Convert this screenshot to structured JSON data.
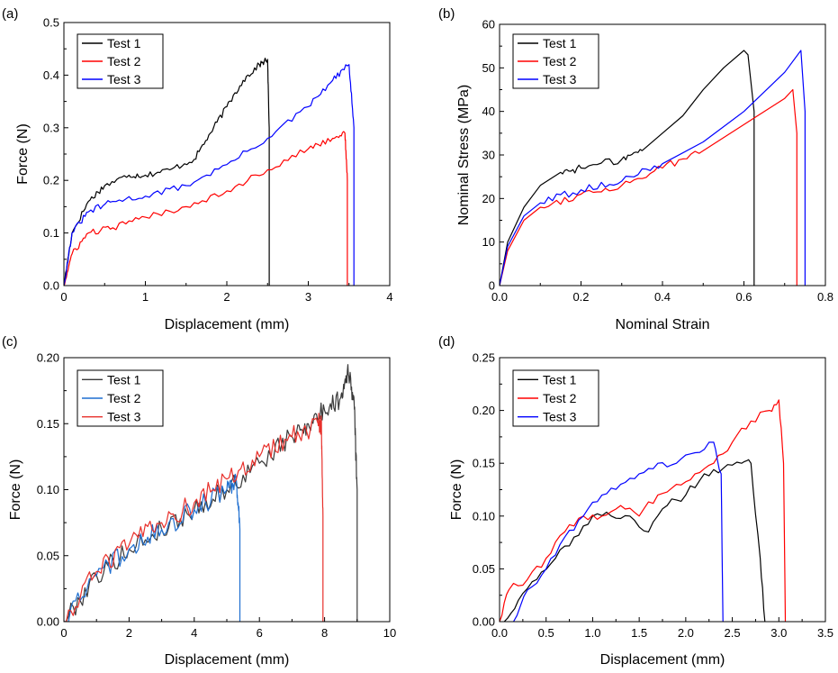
{
  "figure": {
    "panel_count": 4
  },
  "chart_data": [
    {
      "panel_label": "(a)",
      "type": "line",
      "title": "",
      "xlabel": "Displacement (mm)",
      "ylabel": "Force (N)",
      "xlim": [
        0,
        4
      ],
      "ylim": [
        0,
        0.5
      ],
      "xticks": [
        "0",
        "1",
        "2",
        "3",
        "4"
      ],
      "yticks": [
        "0.0",
        "0.1",
        "0.2",
        "0.3",
        "0.4",
        "0.5"
      ],
      "grid": false,
      "legend": "top-left",
      "series": [
        {
          "name": "Test 1",
          "color": "#000000",
          "x": [
            0,
            0.1,
            0.3,
            0.5,
            0.8,
            1.0,
            1.3,
            1.6,
            1.8,
            2.0,
            2.2,
            2.4,
            2.5,
            2.52,
            2.52
          ],
          "y": [
            0.0,
            0.1,
            0.16,
            0.19,
            0.21,
            0.21,
            0.22,
            0.24,
            0.29,
            0.34,
            0.39,
            0.42,
            0.43,
            0.3,
            0.0
          ]
        },
        {
          "name": "Test 2",
          "color": "#ff0000",
          "x": [
            0,
            0.1,
            0.3,
            0.6,
            1.0,
            1.5,
            2.0,
            2.5,
            3.0,
            3.3,
            3.45,
            3.48,
            3.48
          ],
          "y": [
            0.0,
            0.06,
            0.1,
            0.11,
            0.13,
            0.15,
            0.18,
            0.22,
            0.26,
            0.28,
            0.29,
            0.2,
            0.0
          ]
        },
        {
          "name": "Test 3",
          "color": "#0000ff",
          "x": [
            0,
            0.1,
            0.3,
            0.6,
            1.0,
            1.5,
            2.0,
            2.5,
            3.0,
            3.3,
            3.5,
            3.56,
            3.56
          ],
          "y": [
            0.0,
            0.1,
            0.14,
            0.16,
            0.17,
            0.19,
            0.23,
            0.28,
            0.34,
            0.39,
            0.42,
            0.3,
            0.0
          ]
        }
      ]
    },
    {
      "panel_label": "(b)",
      "type": "line",
      "title": "",
      "xlabel": "Nominal Strain",
      "ylabel": "Nominal Stress (MPa)",
      "xlim": [
        0,
        0.8
      ],
      "ylim": [
        0,
        60
      ],
      "xticks": [
        "0.0",
        "0.2",
        "0.4",
        "0.6",
        "0.8"
      ],
      "yticks": [
        "0",
        "10",
        "20",
        "30",
        "40",
        "50",
        "60"
      ],
      "grid": false,
      "legend": "top-left",
      "series": [
        {
          "name": "Test 1",
          "color": "#000000",
          "x": [
            0,
            0.02,
            0.06,
            0.1,
            0.15,
            0.2,
            0.3,
            0.35,
            0.4,
            0.45,
            0.5,
            0.55,
            0.6,
            0.61,
            0.625,
            0.625
          ],
          "y": [
            0,
            10,
            18,
            23,
            26,
            27,
            29,
            31,
            35,
            39,
            45,
            50,
            54,
            53,
            40,
            0
          ]
        },
        {
          "name": "Test 2",
          "color": "#ff0000",
          "x": [
            0,
            0.02,
            0.06,
            0.1,
            0.2,
            0.3,
            0.4,
            0.5,
            0.6,
            0.7,
            0.72,
            0.73,
            0.73
          ],
          "y": [
            0,
            8,
            15,
            18,
            21,
            23,
            27,
            31,
            37,
            43,
            45,
            35,
            0
          ]
        },
        {
          "name": "Test 3",
          "color": "#0000ff",
          "x": [
            0,
            0.02,
            0.06,
            0.1,
            0.2,
            0.3,
            0.4,
            0.5,
            0.6,
            0.7,
            0.74,
            0.75,
            0.75
          ],
          "y": [
            0,
            9,
            16,
            19,
            22,
            24,
            28,
            33,
            40,
            49,
            54,
            40,
            0
          ]
        }
      ]
    },
    {
      "panel_label": "(c)",
      "type": "line",
      "title": "",
      "xlabel": "Displacement (mm)",
      "ylabel": "Force (N)",
      "xlim": [
        0,
        10
      ],
      "ylim": [
        0,
        0.2
      ],
      "xticks": [
        "0",
        "2",
        "4",
        "6",
        "8",
        "10"
      ],
      "yticks": [
        "0.00",
        "0.05",
        "0.10",
        "0.15",
        "0.20"
      ],
      "grid": false,
      "legend": "top-left",
      "series": [
        {
          "name": "Test 1",
          "color": "#3a3a3a",
          "x": [
            0,
            1,
            2,
            3,
            4,
            5,
            6,
            7,
            7.5,
            8,
            8.5,
            8.7,
            8.9,
            9.0,
            9.0
          ],
          "y": [
            0.0,
            0.035,
            0.055,
            0.07,
            0.085,
            0.1,
            0.12,
            0.14,
            0.15,
            0.16,
            0.17,
            0.19,
            0.17,
            0.1,
            0.0
          ]
        },
        {
          "name": "Test 2",
          "color": "#1f6fd0",
          "x": [
            0,
            1,
            2,
            3,
            4,
            5,
            5.3,
            5.4,
            5.4
          ],
          "y": [
            0.0,
            0.035,
            0.055,
            0.07,
            0.085,
            0.1,
            0.105,
            0.07,
            0.0
          ]
        },
        {
          "name": "Test 3",
          "color": "#e8302b",
          "x": [
            0,
            1,
            2,
            3,
            4,
            5,
            6,
            7,
            7.8,
            7.9,
            7.95,
            7.95
          ],
          "y": [
            0.0,
            0.038,
            0.058,
            0.075,
            0.09,
            0.108,
            0.125,
            0.14,
            0.15,
            0.15,
            0.08,
            0.0
          ]
        }
      ]
    },
    {
      "panel_label": "(d)",
      "type": "line",
      "title": "",
      "xlabel": "Displacement (mm)",
      "ylabel": "Force (N)",
      "xlim": [
        0,
        3.5
      ],
      "ylim": [
        0,
        0.25
      ],
      "xticks": [
        "0.0",
        "0.5",
        "1.0",
        "1.5",
        "2.0",
        "2.5",
        "3.0",
        "3.5"
      ],
      "yticks": [
        "0.00",
        "0.05",
        "0.10",
        "0.15",
        "0.20",
        "0.25"
      ],
      "grid": false,
      "legend": "top-left",
      "series": [
        {
          "name": "Test 1",
          "color": "#000000",
          "x": [
            0.05,
            0.2,
            0.4,
            0.6,
            0.8,
            1.0,
            1.2,
            1.4,
            1.6,
            1.8,
            2.0,
            2.2,
            2.4,
            2.6,
            2.7,
            2.8,
            2.85
          ],
          "y": [
            0.0,
            0.02,
            0.04,
            0.06,
            0.08,
            0.1,
            0.1,
            0.1,
            0.085,
            0.11,
            0.12,
            0.14,
            0.145,
            0.15,
            0.15,
            0.06,
            0.0
          ]
        },
        {
          "name": "Test 2",
          "color": "#ff0000",
          "x": [
            0.0,
            0.1,
            0.3,
            0.5,
            0.7,
            0.9,
            1.1,
            1.3,
            1.5,
            1.7,
            1.9,
            2.1,
            2.3,
            2.5,
            2.7,
            2.9,
            3.0,
            3.05,
            3.07
          ],
          "y": [
            0.0,
            0.03,
            0.04,
            0.06,
            0.085,
            0.1,
            0.1,
            0.11,
            0.1,
            0.12,
            0.13,
            0.14,
            0.15,
            0.17,
            0.19,
            0.2,
            0.21,
            0.15,
            0.0
          ]
        },
        {
          "name": "Test 3",
          "color": "#0000ff",
          "x": [
            0.15,
            0.3,
            0.5,
            0.7,
            0.9,
            1.1,
            1.3,
            1.5,
            1.7,
            1.9,
            2.1,
            2.3,
            2.38,
            2.4
          ],
          "y": [
            0.0,
            0.03,
            0.05,
            0.08,
            0.1,
            0.12,
            0.13,
            0.14,
            0.15,
            0.15,
            0.16,
            0.17,
            0.14,
            0.0
          ]
        }
      ]
    }
  ]
}
